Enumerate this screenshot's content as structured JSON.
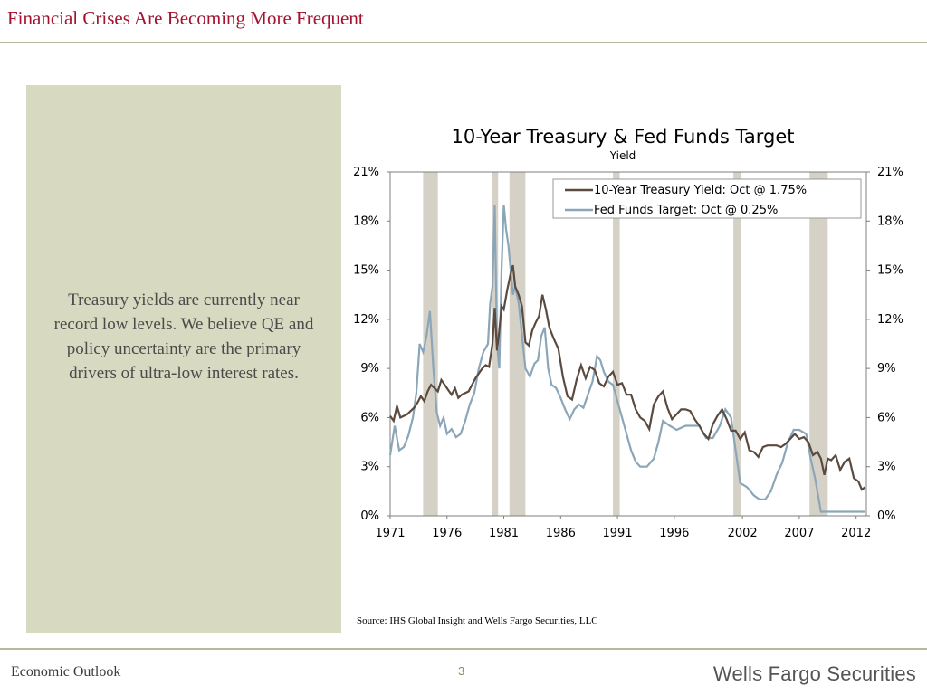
{
  "header": {
    "title": "Financial Crises Are Becoming More Frequent"
  },
  "panel": {
    "text": "Treasury yields are currently near record low levels. We believe QE and policy uncertainty are the primary drivers of ultra-low interest rates."
  },
  "source": "Source: IHS Global Insight and Wells Fargo Securities, LLC",
  "footer": {
    "left": "Economic Outlook",
    "page": "3",
    "logo": "Wells Fargo Securities"
  },
  "colors": {
    "title": "#a3122e",
    "treasury": "#5a4a3f",
    "fedfunds": "#8ba6b8",
    "recession": "#d6d1c6",
    "panel": "#d8d9c1"
  },
  "chart_data": {
    "type": "line",
    "title": "10-Year Treasury & Fed Funds Target",
    "subtitle": "Yield",
    "xlim": [
      1971,
      2012.9
    ],
    "ylim": [
      0,
      21
    ],
    "yticks": [
      "0%",
      "3%",
      "6%",
      "9%",
      "12%",
      "15%",
      "18%",
      "21%"
    ],
    "xticks": [
      "1971",
      "1976",
      "1981",
      "1986",
      "1991",
      "1996",
      "2002",
      "2007",
      "2012"
    ],
    "legend_position": "top-right",
    "grid": false,
    "recessions": [
      [
        1973.9,
        1975.2
      ],
      [
        1980.0,
        1980.5
      ],
      [
        1981.5,
        1982.9
      ],
      [
        1990.6,
        1991.2
      ],
      [
        2001.2,
        2001.9
      ],
      [
        2007.9,
        2009.5
      ]
    ],
    "series": [
      {
        "name": "10-Year Treasury Yield: Oct @ 1.75%",
        "x": [
          1971.0,
          1971.3,
          1971.6,
          1971.9,
          1972.2,
          1972.5,
          1972.8,
          1973.1,
          1973.4,
          1973.7,
          1974.0,
          1974.3,
          1974.6,
          1974.9,
          1975.2,
          1975.5,
          1975.8,
          1976.1,
          1976.4,
          1976.7,
          1977.0,
          1977.3,
          1977.6,
          1977.9,
          1978.2,
          1978.5,
          1978.8,
          1979.1,
          1979.4,
          1979.7,
          1980.0,
          1980.2,
          1980.4,
          1980.6,
          1980.8,
          1981.0,
          1981.3,
          1981.6,
          1981.8,
          1982.0,
          1982.3,
          1982.6,
          1982.9,
          1983.2,
          1983.5,
          1983.8,
          1984.1,
          1984.4,
          1984.7,
          1985.0,
          1985.4,
          1985.8,
          1986.2,
          1986.6,
          1987.0,
          1987.4,
          1987.8,
          1988.2,
          1988.6,
          1989.0,
          1989.4,
          1989.8,
          1990.2,
          1990.6,
          1991.0,
          1991.4,
          1991.8,
          1992.2,
          1992.6,
          1993.0,
          1993.4,
          1993.8,
          1994.2,
          1994.6,
          1995.0,
          1995.4,
          1995.8,
          1996.2,
          1996.6,
          1997.0,
          1997.4,
          1997.8,
          1998.2,
          1998.6,
          1999.0,
          1999.4,
          1999.8,
          2000.2,
          2000.6,
          2001.0,
          2001.4,
          2001.8,
          2002.2,
          2002.6,
          2003.0,
          2003.4,
          2003.8,
          2004.2,
          2004.6,
          2005.0,
          2005.4,
          2005.8,
          2006.2,
          2006.6,
          2007.0,
          2007.4,
          2007.8,
          2008.2,
          2008.6,
          2008.9,
          2009.2,
          2009.5,
          2009.8,
          2010.2,
          2010.6,
          2011.0,
          2011.4,
          2011.8,
          2012.2,
          2012.5,
          2012.8
        ],
        "y": [
          6.1,
          5.8,
          6.7,
          6.0,
          6.1,
          6.2,
          6.4,
          6.6,
          6.9,
          7.3,
          7.0,
          7.6,
          8.0,
          7.8,
          7.6,
          8.3,
          8.0,
          7.7,
          7.4,
          7.8,
          7.2,
          7.4,
          7.5,
          7.6,
          8.0,
          8.4,
          8.7,
          9.0,
          9.2,
          9.1,
          10.5,
          12.7,
          10.1,
          11.3,
          12.8,
          12.6,
          13.8,
          14.8,
          15.3,
          14.0,
          13.5,
          12.8,
          10.6,
          10.4,
          11.3,
          11.8,
          12.2,
          13.5,
          12.6,
          11.5,
          10.8,
          10.2,
          8.5,
          7.3,
          7.1,
          8.3,
          9.2,
          8.4,
          9.1,
          8.9,
          8.1,
          7.9,
          8.5,
          8.8,
          8.0,
          8.1,
          7.4,
          7.4,
          6.5,
          6.0,
          5.8,
          5.3,
          6.8,
          7.3,
          7.6,
          6.6,
          5.9,
          6.2,
          6.5,
          6.5,
          6.4,
          5.9,
          5.5,
          5.0,
          4.7,
          5.6,
          6.1,
          6.5,
          5.9,
          5.2,
          5.2,
          4.7,
          5.1,
          4.0,
          3.9,
          3.6,
          4.2,
          4.3,
          4.3,
          4.3,
          4.2,
          4.4,
          4.7,
          5.0,
          4.7,
          4.8,
          4.5,
          3.7,
          3.9,
          3.5,
          2.5,
          3.5,
          3.4,
          3.7,
          2.8,
          3.3,
          3.5,
          2.3,
          2.1,
          1.6,
          1.75
        ]
      },
      {
        "name": "Fed Funds Target: Oct @ 0.25%",
        "x": [
          1971.0,
          1971.4,
          1971.8,
          1972.2,
          1972.6,
          1973.0,
          1973.3,
          1973.6,
          1973.9,
          1974.2,
          1974.5,
          1974.8,
          1975.1,
          1975.4,
          1975.7,
          1976.0,
          1976.4,
          1976.8,
          1977.2,
          1977.6,
          1978.0,
          1978.4,
          1978.8,
          1979.2,
          1979.6,
          1979.8,
          1980.0,
          1980.2,
          1980.4,
          1980.6,
          1980.8,
          1981.0,
          1981.2,
          1981.4,
          1981.6,
          1981.8,
          1982.0,
          1982.3,
          1982.6,
          1982.9,
          1983.3,
          1983.7,
          1984.0,
          1984.3,
          1984.6,
          1984.9,
          1985.2,
          1985.6,
          1986.0,
          1986.4,
          1986.8,
          1987.2,
          1987.6,
          1988.0,
          1988.4,
          1988.8,
          1989.2,
          1989.5,
          1989.8,
          1990.2,
          1990.6,
          1991.0,
          1991.4,
          1991.8,
          1992.2,
          1992.6,
          1993.0,
          1993.6,
          1994.2,
          1994.6,
          1995.0,
          1995.6,
          1996.2,
          1997.0,
          1997.6,
          1998.2,
          1998.8,
          1999.4,
          2000.0,
          2000.5,
          2001.0,
          2001.4,
          2001.8,
          2002.4,
          2003.0,
          2003.5,
          2004.0,
          2004.5,
          2005.0,
          2005.5,
          2006.0,
          2006.5,
          2007.0,
          2007.6,
          2008.0,
          2008.4,
          2008.9,
          2009.5,
          2010.5,
          2011.5,
          2012.8
        ],
        "y": [
          3.7,
          5.5,
          4.0,
          4.2,
          4.9,
          6.0,
          7.5,
          10.5,
          10.0,
          11.0,
          12.5,
          9.0,
          6.3,
          5.5,
          6.0,
          5.0,
          5.3,
          4.8,
          5.0,
          5.8,
          6.8,
          7.5,
          9.0,
          10.0,
          10.5,
          13.0,
          14.0,
          19.0,
          10.5,
          9.0,
          15.0,
          19.0,
          17.5,
          16.5,
          15.0,
          13.5,
          14.0,
          13.0,
          11.0,
          9.0,
          8.5,
          9.3,
          9.5,
          11.0,
          11.5,
          9.0,
          8.0,
          7.8,
          7.2,
          6.5,
          5.9,
          6.5,
          6.8,
          6.6,
          7.4,
          8.2,
          9.75,
          9.5,
          8.8,
          8.2,
          8.0,
          7.0,
          6.0,
          5.0,
          4.0,
          3.3,
          3.0,
          3.0,
          3.5,
          4.5,
          5.8,
          5.5,
          5.25,
          5.5,
          5.5,
          5.5,
          4.75,
          4.75,
          5.5,
          6.5,
          6.0,
          4.0,
          2.0,
          1.75,
          1.25,
          1.0,
          1.0,
          1.5,
          2.5,
          3.25,
          4.5,
          5.25,
          5.25,
          5.0,
          3.5,
          2.25,
          0.25,
          0.25,
          0.25,
          0.25,
          0.25
        ]
      }
    ]
  }
}
